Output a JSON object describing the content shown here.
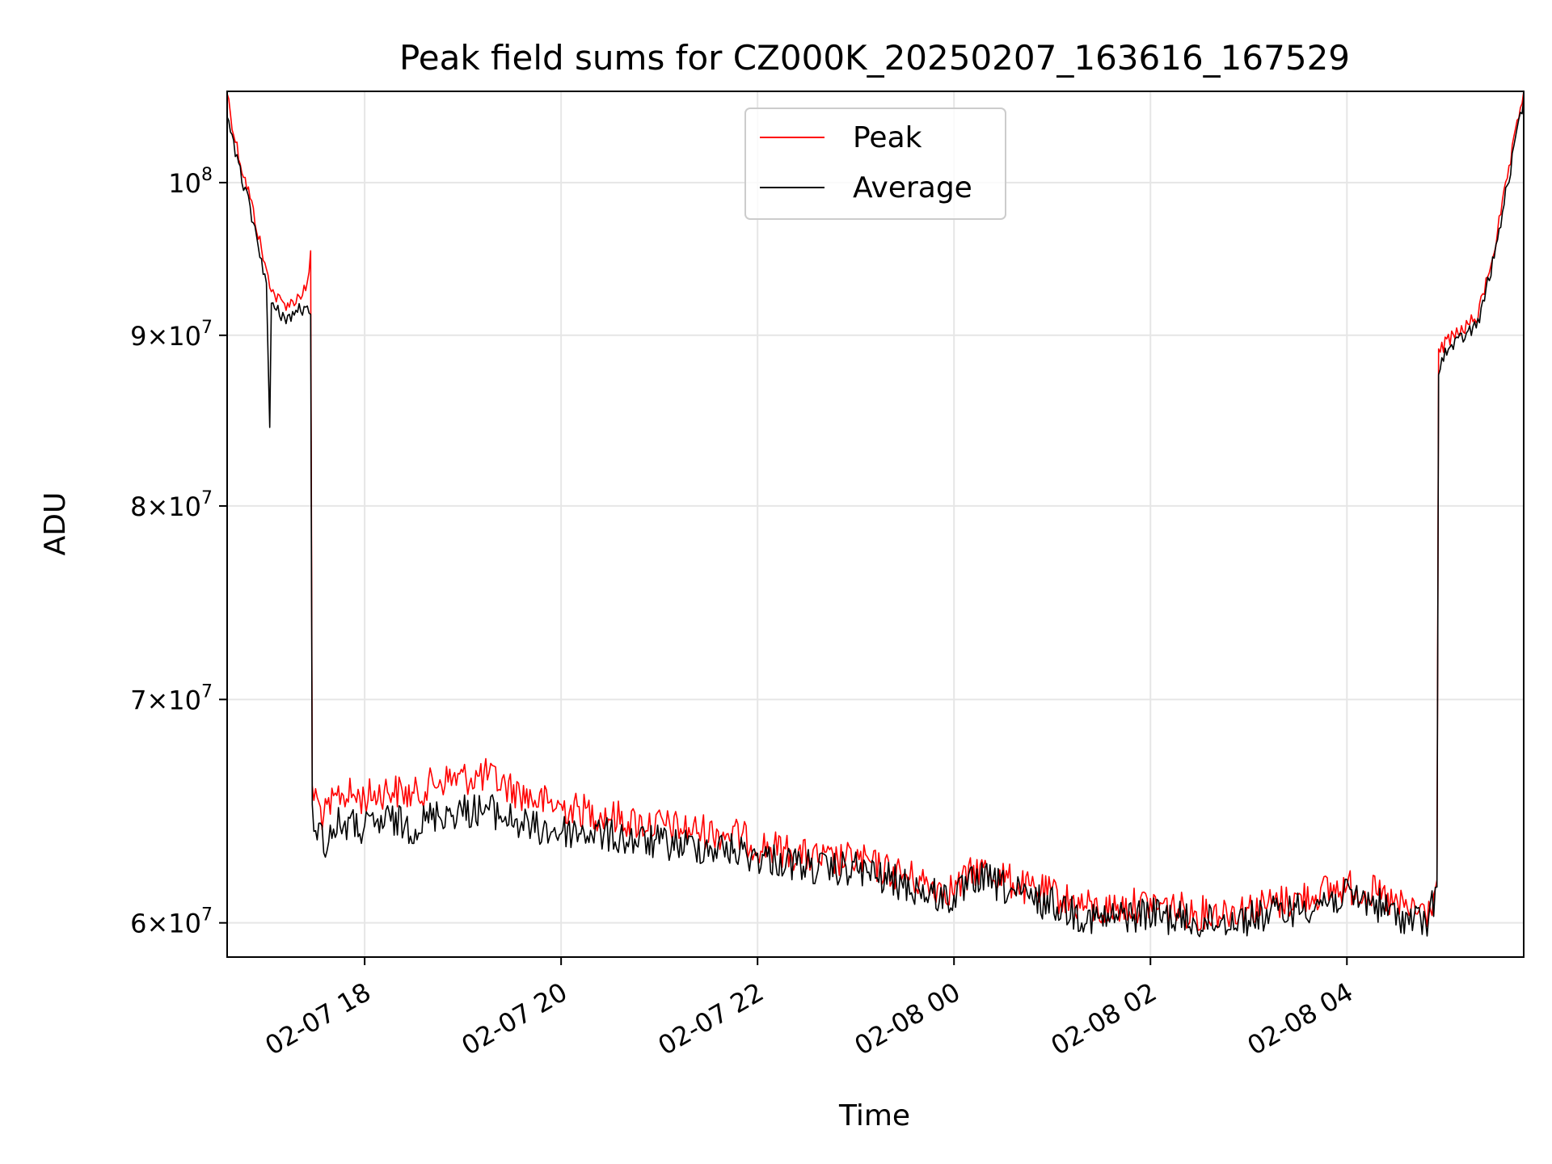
{
  "chart_data": {
    "type": "line",
    "title": "Peak field sums for CZ000K_20250207_163616_167529",
    "xlabel": "Time",
    "ylabel": "ADU",
    "yscale": "log",
    "grid": true,
    "legend_position": "top-center",
    "x_range": [
      "2025-02-07 16:36",
      "2025-02-08 05:48"
    ],
    "y_range": [
      58600000,
      106500000
    ],
    "x_ticks": [
      {
        "value": "2025-02-07 18:00",
        "label": "02-07 18"
      },
      {
        "value": "2025-02-07 20:00",
        "label": "02-07 20"
      },
      {
        "value": "2025-02-07 22:00",
        "label": "02-07 22"
      },
      {
        "value": "2025-02-08 00:00",
        "label": "02-08 00"
      },
      {
        "value": "2025-02-08 02:00",
        "label": "02-08 02"
      },
      {
        "value": "2025-02-08 04:00",
        "label": "02-08 04"
      }
    ],
    "y_ticks": [
      {
        "value": 60000000,
        "mantissa": "6",
        "exponent": "7"
      },
      {
        "value": 70000000,
        "mantissa": "7",
        "exponent": "7"
      },
      {
        "value": 80000000,
        "mantissa": "8",
        "exponent": "7"
      },
      {
        "value": 90000000,
        "mantissa": "9",
        "exponent": "7"
      },
      {
        "value": 100000000,
        "mantissa": "",
        "exponent": "8"
      }
    ],
    "series": [
      {
        "name": "Peak",
        "color": "#ff0000",
        "points": [
          [
            "2025-02-07 16:36",
            106500000
          ],
          [
            "2025-02-07 16:40",
            103500000
          ],
          [
            "2025-02-07 16:45",
            101000000
          ],
          [
            "2025-02-07 16:50",
            99000000
          ],
          [
            "2025-02-07 16:55",
            96500000
          ],
          [
            "2025-02-07 17:00",
            94000000
          ],
          [
            "2025-02-07 17:05",
            92500000
          ],
          [
            "2025-02-07 17:10",
            92000000
          ],
          [
            "2025-02-07 17:15",
            92000000
          ],
          [
            "2025-02-07 17:20",
            92500000
          ],
          [
            "2025-02-07 17:25",
            93000000
          ],
          [
            "2025-02-07 17:27",
            95400000
          ],
          [
            "2025-02-07 17:28",
            65800000
          ],
          [
            "2025-02-07 17:35",
            64500000
          ],
          [
            "2025-02-07 17:45",
            65600000
          ],
          [
            "2025-02-07 18:00",
            65400000
          ],
          [
            "2025-02-07 18:15",
            65800000
          ],
          [
            "2025-02-07 18:30",
            65500000
          ],
          [
            "2025-02-07 18:45",
            66200000
          ],
          [
            "2025-02-07 19:00",
            66300000
          ],
          [
            "2025-02-07 19:15",
            66400000
          ],
          [
            "2025-02-07 19:30",
            65800000
          ],
          [
            "2025-02-07 19:45",
            65300000
          ],
          [
            "2025-02-07 20:00",
            65000000
          ],
          [
            "2025-02-07 20:15",
            64800000
          ],
          [
            "2025-02-07 20:30",
            64600000
          ],
          [
            "2025-02-07 20:45",
            64300000
          ],
          [
            "2025-02-07 21:00",
            64200000
          ],
          [
            "2025-02-07 21:15",
            64000000
          ],
          [
            "2025-02-07 21:30",
            63900000
          ],
          [
            "2025-02-07 21:45",
            63800000
          ],
          [
            "2025-02-07 22:00",
            63300000
          ],
          [
            "2025-02-07 22:15",
            63100000
          ],
          [
            "2025-02-07 22:30",
            62800000
          ],
          [
            "2025-02-07 22:45",
            62600000
          ],
          [
            "2025-02-07 23:00",
            62700000
          ],
          [
            "2025-02-07 23:15",
            62300000
          ],
          [
            "2025-02-07 23:30",
            62000000
          ],
          [
            "2025-02-07 23:45",
            61600000
          ],
          [
            "2025-02-08 00:00",
            61400000
          ],
          [
            "2025-02-08 00:15",
            62300000
          ],
          [
            "2025-02-08 00:30",
            61900000
          ],
          [
            "2025-02-08 00:45",
            61400000
          ],
          [
            "2025-02-08 01:00",
            61200000
          ],
          [
            "2025-02-08 01:15",
            60800000
          ],
          [
            "2025-02-08 01:30",
            60500000
          ],
          [
            "2025-02-08 01:45",
            60700000
          ],
          [
            "2025-02-08 02:00",
            60800000
          ],
          [
            "2025-02-08 02:15",
            60600000
          ],
          [
            "2025-02-08 02:30",
            60400000
          ],
          [
            "2025-02-08 02:45",
            60500000
          ],
          [
            "2025-02-08 03:00",
            60600000
          ],
          [
            "2025-02-08 03:15",
            60800000
          ],
          [
            "2025-02-08 03:30",
            61000000
          ],
          [
            "2025-02-08 03:45",
            61300000
          ],
          [
            "2025-02-08 04:00",
            61500000
          ],
          [
            "2025-02-08 04:15",
            61300000
          ],
          [
            "2025-02-08 04:30",
            60700000
          ],
          [
            "2025-02-08 04:50",
            60400000
          ],
          [
            "2025-02-08 04:55",
            61800000
          ],
          [
            "2025-02-08 04:56",
            88800000
          ],
          [
            "2025-02-08 05:00",
            89500000
          ],
          [
            "2025-02-08 05:10",
            90300000
          ],
          [
            "2025-02-08 05:20",
            91200000
          ],
          [
            "2025-02-08 05:30",
            95500000
          ],
          [
            "2025-02-08 05:40",
            101500000
          ],
          [
            "2025-02-08 05:48",
            106500000
          ]
        ]
      },
      {
        "name": "Average",
        "color": "#000000",
        "points": [
          [
            "2025-02-07 16:36",
            105000000
          ],
          [
            "2025-02-07 16:40",
            102500000
          ],
          [
            "2025-02-07 16:45",
            100300000
          ],
          [
            "2025-02-07 16:50",
            98200000
          ],
          [
            "2025-02-07 16:55",
            95800000
          ],
          [
            "2025-02-07 17:00",
            93300000
          ],
          [
            "2025-02-07 17:02",
            84500000
          ],
          [
            "2025-02-07 17:03",
            91800000
          ],
          [
            "2025-02-07 17:10",
            91200000
          ],
          [
            "2025-02-07 17:15",
            91100000
          ],
          [
            "2025-02-07 17:20",
            91700000
          ],
          [
            "2025-02-07 17:27",
            91300000
          ],
          [
            "2025-02-07 17:28",
            64800000
          ],
          [
            "2025-02-07 17:35",
            63400000
          ],
          [
            "2025-02-07 17:45",
            64300000
          ],
          [
            "2025-02-07 18:00",
            64000000
          ],
          [
            "2025-02-07 18:15",
            64400000
          ],
          [
            "2025-02-07 18:30",
            64100000
          ],
          [
            "2025-02-07 18:45",
            64700000
          ],
          [
            "2025-02-07 19:00",
            64800000
          ],
          [
            "2025-02-07 19:15",
            64900000
          ],
          [
            "2025-02-07 19:30",
            64400000
          ],
          [
            "2025-02-07 19:45",
            64000000
          ],
          [
            "2025-02-07 20:00",
            63900000
          ],
          [
            "2025-02-07 20:15",
            63900000
          ],
          [
            "2025-02-07 20:30",
            63700000
          ],
          [
            "2025-02-07 20:45",
            63500000
          ],
          [
            "2025-02-07 21:00",
            63400000
          ],
          [
            "2025-02-07 21:15",
            63300000
          ],
          [
            "2025-02-07 21:30",
            63200000
          ],
          [
            "2025-02-07 21:45",
            63100000
          ],
          [
            "2025-02-07 22:00",
            62800000
          ],
          [
            "2025-02-07 22:15",
            62600000
          ],
          [
            "2025-02-07 22:30",
            62400000
          ],
          [
            "2025-02-07 22:45",
            62200000
          ],
          [
            "2025-02-07 23:00",
            62300000
          ],
          [
            "2025-02-07 23:15",
            61900000
          ],
          [
            "2025-02-07 23:30",
            61600000
          ],
          [
            "2025-02-07 23:45",
            61200000
          ],
          [
            "2025-02-08 00:00",
            61000000
          ],
          [
            "2025-02-08 00:15",
            61900000
          ],
          [
            "2025-02-08 00:30",
            61500000
          ],
          [
            "2025-02-08 00:45",
            61000000
          ],
          [
            "2025-02-08 01:00",
            60800000
          ],
          [
            "2025-02-08 01:15",
            60400000
          ],
          [
            "2025-02-08 01:30",
            60100000
          ],
          [
            "2025-02-08 01:45",
            60300000
          ],
          [
            "2025-02-08 02:00",
            60400000
          ],
          [
            "2025-02-08 02:15",
            60200000
          ],
          [
            "2025-02-08 02:30",
            60000000
          ],
          [
            "2025-02-08 02:45",
            60100000
          ],
          [
            "2025-02-08 03:00",
            60200000
          ],
          [
            "2025-02-08 03:15",
            60400000
          ],
          [
            "2025-02-08 03:30",
            60600000
          ],
          [
            "2025-02-08 03:45",
            60900000
          ],
          [
            "2025-02-08 04:00",
            61100000
          ],
          [
            "2025-02-08 04:15",
            60900000
          ],
          [
            "2025-02-08 04:30",
            60300000
          ],
          [
            "2025-02-08 04:50",
            60000000
          ],
          [
            "2025-02-08 04:55",
            61500000
          ],
          [
            "2025-02-08 04:56",
            88000000
          ],
          [
            "2025-02-08 05:00",
            88900000
          ],
          [
            "2025-02-08 05:10",
            89800000
          ],
          [
            "2025-02-08 05:20",
            90700000
          ],
          [
            "2025-02-08 05:30",
            95000000
          ],
          [
            "2025-02-08 05:40",
            101000000
          ],
          [
            "2025-02-08 05:48",
            106000000
          ]
        ]
      }
    ]
  }
}
